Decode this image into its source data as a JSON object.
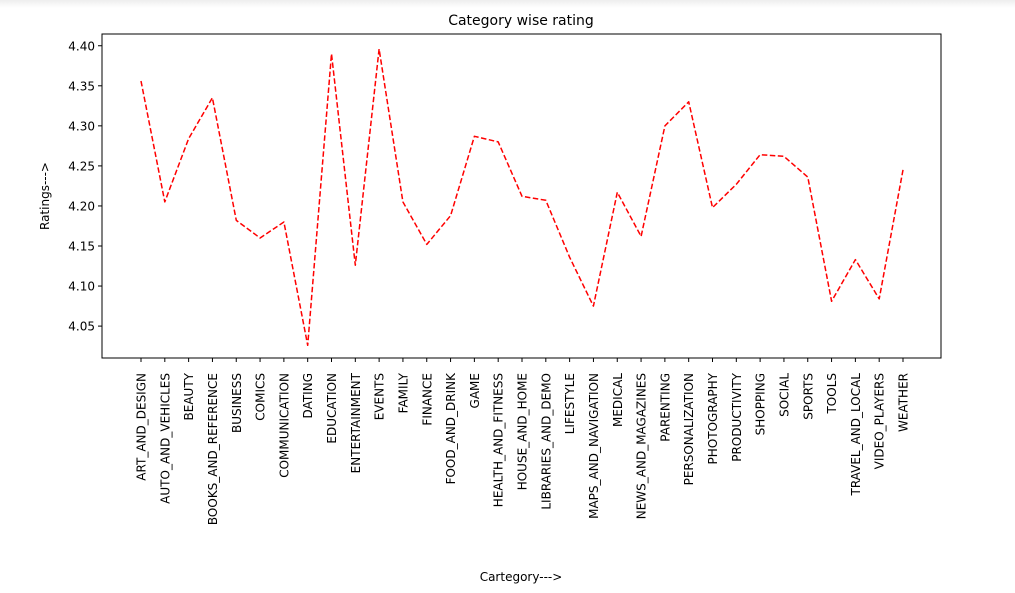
{
  "chart_data": {
    "type": "line",
    "title": "Category wise rating",
    "xlabel": "Cartegory--->",
    "ylabel": "Ratings--->",
    "ylim": [
      4.0,
      4.42
    ],
    "yticks": [
      "4.05",
      "4.10",
      "4.15",
      "4.20",
      "4.25",
      "4.30",
      "4.35",
      "4.40"
    ],
    "grid": false,
    "line_color": "#ff0000",
    "line_style": "dashed",
    "categories": [
      "ART_AND_DESIGN",
      "AUTO_AND_VEHICLES",
      "BEAUTY",
      "BOOKS_AND_REFERENCE",
      "BUSINESS",
      "COMICS",
      "COMMUNICATION",
      "DATING",
      "EDUCATION",
      "ENTERTAINMENT",
      "EVENTS",
      "FAMILY",
      "FINANCE",
      "FOOD_AND_DRINK",
      "GAME",
      "HEALTH_AND_FITNESS",
      "HOUSE_AND_HOME",
      "LIBRARIES_AND_DEMO",
      "LIFESTYLE",
      "MAPS_AND_NAVIGATION",
      "MEDICAL",
      "NEWS_AND_MAGAZINES",
      "PARENTING",
      "PERSONALIZATION",
      "PHOTOGRAPHY",
      "PRODUCTIVITY",
      "SHOPPING",
      "SOCIAL",
      "SPORTS",
      "TOOLS",
      "TRAVEL_AND_LOCAL",
      "VIDEO_PLAYERS",
      "WEATHER"
    ],
    "values": [
      4.356,
      4.205,
      4.284,
      4.335,
      4.182,
      4.16,
      4.18,
      4.026,
      4.39,
      4.126,
      4.396,
      4.205,
      4.152,
      4.188,
      4.287,
      4.28,
      4.212,
      4.207,
      4.136,
      4.075,
      4.217,
      4.162,
      4.3,
      4.33,
      4.198,
      4.227,
      4.264,
      4.262,
      4.236,
      4.081,
      4.133,
      4.084,
      4.245
    ]
  }
}
